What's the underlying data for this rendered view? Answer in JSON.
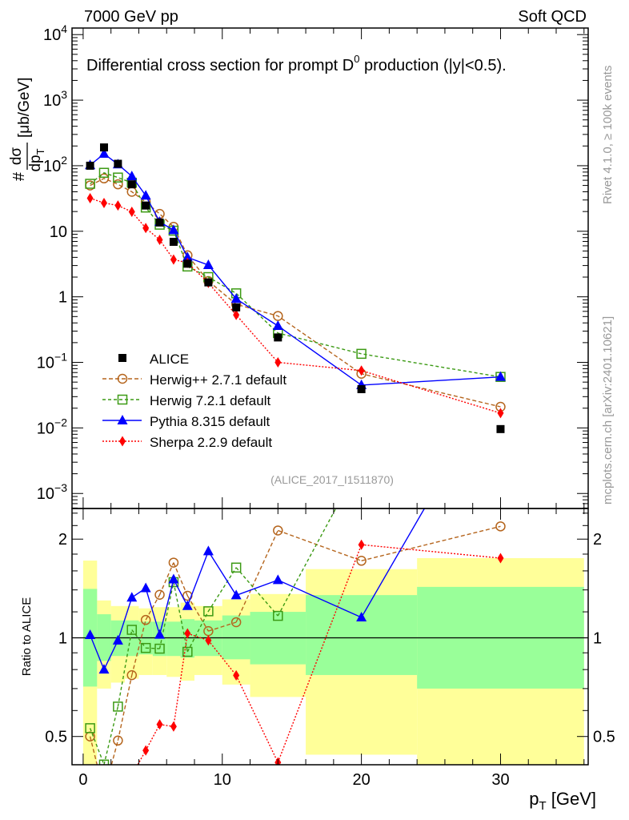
{
  "header": {
    "left": "7000 GeV pp",
    "right": "Soft QCD"
  },
  "side_text": {
    "top": "Rivet 4.1.0, ≥ 100k events",
    "bottom": "mcplots.cern.ch [arXiv:2401.10621]"
  },
  "chart_data": {
    "type": "line",
    "title": {
      "pre": "Differential cross section for prompt D",
      "sup": "0",
      "post": " production (|y|<0.5)."
    },
    "analysis_id": "(ALICE_2017_I1511870)",
    "ylabel": {
      "hash": "#",
      "num": "dσ",
      "den": "dp",
      "den_sub": "T",
      "units": "[μb/GeV]"
    },
    "xlabel": {
      "main": "p",
      "sub": "T",
      "units": " [GeV]"
    },
    "ratio_ylabel": "Ratio to ALICE",
    "xlim": [
      -0.8,
      36.3
    ],
    "ylim": [
      0.00059,
      12600
    ],
    "yscale": "log",
    "ratio_ylim": [
      0.41,
      2.48
    ],
    "x_ticks": [
      {
        "v": 0,
        "label": "0"
      },
      {
        "v": 10,
        "label": "10"
      },
      {
        "v": 20,
        "label": "20"
      },
      {
        "v": 30,
        "label": "30"
      }
    ],
    "y_ticks": [
      {
        "v": 10000,
        "base": "10",
        "exp": "4"
      },
      {
        "v": 1000,
        "base": "10",
        "exp": "3"
      },
      {
        "v": 100,
        "base": "10",
        "exp": "2"
      },
      {
        "v": 10,
        "base": "10",
        "exp": ""
      },
      {
        "v": 1,
        "base": "1",
        "exp": ""
      },
      {
        "v": 0.1,
        "base": "10",
        "exp": "−1"
      },
      {
        "v": 0.01,
        "base": "10",
        "exp": "−2"
      },
      {
        "v": 0.001,
        "base": "10",
        "exp": "−3"
      }
    ],
    "ratio_ticks": [
      {
        "v": 0.5,
        "label": "0.5"
      },
      {
        "v": 1,
        "label": "1"
      },
      {
        "v": 2,
        "label": "2"
      }
    ],
    "bin_edges": [
      0,
      1,
      2,
      3,
      4,
      5,
      6,
      7,
      8,
      10,
      12,
      16,
      24,
      36
    ],
    "x": [
      0.5,
      1.5,
      2.5,
      3.5,
      4.5,
      5.5,
      6.5,
      7.5,
      9,
      11,
      14,
      20,
      30
    ],
    "data": {
      "name": "ALICE",
      "values": [
        100,
        190,
        107,
        52,
        24.7,
        13.6,
        6.9,
        3.2,
        1.66,
        0.69,
        0.24,
        0.039,
        0.0096
      ],
      "band_total": [
        [
          0.35,
          1.72
        ],
        [
          0.7,
          1.3
        ],
        [
          0.73,
          1.25
        ],
        [
          0.75,
          1.25
        ],
        [
          0.77,
          1.23
        ],
        [
          0.77,
          1.24
        ],
        [
          0.76,
          1.24
        ],
        [
          0.74,
          1.28
        ],
        [
          0.77,
          1.25
        ],
        [
          0.72,
          1.31
        ],
        [
          0.66,
          1.36
        ],
        [
          0.44,
          1.62
        ],
        [
          0.35,
          1.75
        ]
      ],
      "band_stat": [
        [
          0.71,
          1.41
        ],
        [
          0.85,
          1.18
        ],
        [
          0.88,
          1.13
        ],
        [
          0.88,
          1.13
        ],
        [
          0.89,
          1.12
        ],
        [
          0.88,
          1.12
        ],
        [
          0.88,
          1.12
        ],
        [
          0.87,
          1.14
        ],
        [
          0.88,
          1.13
        ],
        [
          0.86,
          1.17
        ],
        [
          0.83,
          1.2
        ],
        [
          0.77,
          1.35
        ],
        [
          0.7,
          1.43
        ]
      ]
    },
    "series": [
      {
        "name": "Herwig++ 2.7.1 default",
        "color": "#b5651d",
        "marker": "circle",
        "dash": "5,3",
        "values": [
          50,
          64,
          52,
          40,
          28,
          18.4,
          11.7,
          4.3,
          1.74,
          0.77,
          0.51,
          0.067,
          0.021
        ]
      },
      {
        "name": "Herwig 7.2.1 default",
        "color": "#3c9a14",
        "marker": "square",
        "dash": "4,3",
        "values": [
          53,
          78,
          66,
          55,
          23,
          12.6,
          10.2,
          2.9,
          2.0,
          1.13,
          0.28,
          0.135,
          0.06
        ]
      },
      {
        "name": "Pythia 8.315 default",
        "color": "#0000ff",
        "marker": "triangle",
        "dash": "",
        "values": [
          102,
          152,
          105,
          69,
          35,
          13.9,
          10.4,
          4.0,
          3.05,
          0.93,
          0.36,
          0.045,
          0.06
        ]
      },
      {
        "name": "Sherpa 2.2.9 default",
        "color": "#ff0000",
        "marker": "diamond",
        "dash": "2,2",
        "values": [
          32,
          27,
          24.7,
          19.8,
          11.2,
          7.4,
          3.7,
          3.3,
          1.63,
          0.53,
          0.1,
          0.075,
          0.0168
        ]
      }
    ],
    "colors": {
      "band_total": "#ffff99",
      "band_stat": "#99ff99",
      "data": "#000000"
    }
  }
}
